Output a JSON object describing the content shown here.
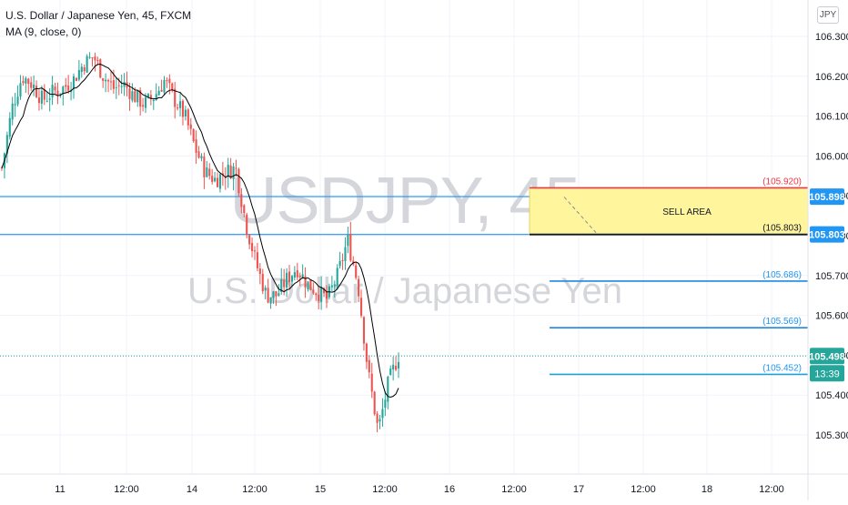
{
  "header": {
    "symbol_title": "U.S. Dollar / Japanese Yen, 45, FXCM",
    "indicator": "MA (9, close, 0)"
  },
  "currency_button": "JPY",
  "watermark": {
    "line1": "USDJPY, 45",
    "line2": "U.S. Dollar / Japanese Yen"
  },
  "colors": {
    "up": "#26a69a",
    "down": "#ef5350",
    "ma": "#000000",
    "blue_line": "#2196f3",
    "red_line": "#f23645",
    "sell_area": "#fff59d",
    "price_tag": "#26a69a"
  },
  "annotations": {
    "sell_area_label": "SELL AREA",
    "level_labels": [
      "(105.920)",
      "(105.803)",
      "(105.686)",
      "(105.569)",
      "(105.452)"
    ]
  },
  "price_axis_tags": {
    "upper_line": "105.898",
    "lower_line": "105.803",
    "last_price": "105.498",
    "countdown": "13:39"
  },
  "chart_data": {
    "type": "candlestick",
    "ylim": [
      105.25,
      106.34
    ],
    "y_ticks": [
      "106.300",
      "106.200",
      "106.100",
      "106.000",
      "105.900",
      "105.800",
      "105.700",
      "105.600",
      "105.500",
      "105.400",
      "105.300"
    ],
    "x_ticks": [
      "11",
      "12:00",
      "14",
      "12:00",
      "15",
      "12:00",
      "16",
      "12:00",
      "17",
      "12:00",
      "18",
      "12:00"
    ],
    "grid": true,
    "horizontal_lines": [
      105.898,
      105.803
    ],
    "levels": [
      {
        "value": 105.92,
        "color": "red"
      },
      {
        "value": 105.803,
        "color": "black"
      },
      {
        "value": 105.686,
        "color": "blue"
      },
      {
        "value": 105.569,
        "color": "blue"
      },
      {
        "value": 105.452,
        "color": "teal"
      }
    ],
    "sell_area": {
      "from": 105.803,
      "to": 105.898
    },
    "last_price": 105.498,
    "close_path": [
      105.97,
      106.12,
      106.2,
      106.18,
      106.14,
      106.16,
      106.17,
      106.19,
      106.23,
      106.25,
      106.2,
      106.17,
      106.18,
      106.15,
      106.13,
      106.15,
      106.19,
      106.14,
      106.1,
      106.02,
      105.96,
      105.94,
      105.96,
      105.97,
      105.83,
      105.73,
      105.65,
      105.65,
      105.69,
      105.72,
      105.68,
      105.66,
      105.64,
      105.7,
      105.79,
      105.68,
      105.46,
      105.31,
      105.43,
      105.5
    ]
  }
}
